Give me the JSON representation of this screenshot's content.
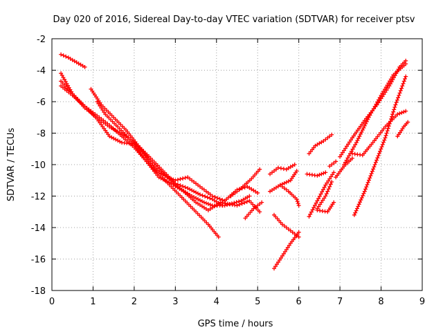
{
  "chart_data": {
    "type": "scatter",
    "title": "Day 020 of 2016, Sidereal Day-to-day VTEC variation (SDTVAR) for receiver ptsv",
    "xlabel": "GPS time / hours",
    "ylabel": "SDTVAR / TECUs",
    "xlim": [
      0,
      9
    ],
    "ylim": [
      -18,
      -2
    ],
    "xticks": [
      "0",
      "1",
      "2",
      "3",
      "4",
      "5",
      "6",
      "7",
      "8",
      "9"
    ],
    "yticks": [
      "-2",
      "-4",
      "-6",
      "-8",
      "-10",
      "-12",
      "-14",
      "-16",
      "-18"
    ],
    "grid": true,
    "marker": "+",
    "color": "#ff0000",
    "series": [
      {
        "x": [
          0.22,
          0.4,
          0.6,
          0.8
        ],
        "y": [
          -3.0,
          -3.2,
          -3.5,
          -3.8
        ]
      },
      {
        "x": [
          0.22,
          0.5,
          0.8,
          1.1,
          1.4,
          1.8,
          2.1,
          2.4,
          2.8,
          3.1,
          3.4,
          3.7,
          3.9,
          4.2,
          4.6,
          4.8
        ],
        "y": [
          -4.2,
          -5.5,
          -6.4,
          -7.0,
          -7.6,
          -8.2,
          -8.8,
          -9.8,
          -10.8,
          -11.5,
          -12.0,
          -12.4,
          -12.6,
          -12.6,
          -12.3,
          -12.0
        ]
      },
      {
        "x": [
          0.22,
          0.5,
          0.8,
          1.1,
          1.4,
          1.7,
          2.0,
          2.3,
          2.6,
          2.9,
          3.2,
          3.5,
          3.8,
          4.05
        ],
        "y": [
          -4.7,
          -5.5,
          -6.3,
          -6.9,
          -7.5,
          -8.2,
          -8.9,
          -9.8,
          -10.6,
          -11.4,
          -12.2,
          -13.0,
          -13.8,
          -14.6
        ]
      },
      {
        "x": [
          0.22,
          0.5,
          0.8,
          1.1,
          1.4,
          1.7,
          2.0,
          2.3,
          2.6,
          2.9,
          3.2,
          3.5,
          3.8,
          4.1,
          4.5,
          4.8,
          5.05
        ],
        "y": [
          -5.0,
          -5.6,
          -6.3,
          -7.1,
          -8.2,
          -8.6,
          -8.7,
          -9.8,
          -10.8,
          -11.2,
          -11.7,
          -12.4,
          -12.9,
          -12.4,
          -12.6,
          -12.3,
          -13.0
        ]
      },
      {
        "x": [
          0.95,
          1.2,
          1.5,
          1.8,
          2.1,
          2.4,
          2.7,
          3.0,
          3.3,
          3.6,
          3.9,
          4.15
        ],
        "y": [
          -5.2,
          -6.2,
          -7.0,
          -7.8,
          -8.8,
          -9.6,
          -10.4,
          -11.2,
          -11.5,
          -11.9,
          -12.2,
          -12.6
        ]
      },
      {
        "x": [
          1.1,
          1.3,
          1.6,
          1.9,
          2.2,
          2.5,
          2.8,
          3.0,
          3.3,
          3.6,
          3.9,
          4.2,
          4.5,
          4.75,
          5.0
        ],
        "y": [
          -6.0,
          -6.8,
          -7.6,
          -8.4,
          -9.2,
          -10.3,
          -10.8,
          -11.0,
          -10.8,
          -11.4,
          -12.0,
          -12.3,
          -11.6,
          -11.4,
          -11.8
        ]
      },
      {
        "x": [
          4.35,
          4.6,
          4.85,
          5.05
        ],
        "y": [
          -12.0,
          -11.5,
          -10.9,
          -10.3
        ]
      },
      {
        "x": [
          4.7,
          4.9,
          5.1
        ],
        "y": [
          -13.4,
          -12.8,
          -12.4
        ]
      },
      {
        "x": [
          5.4,
          5.6,
          5.85,
          6.0
        ],
        "y": [
          -13.2,
          -13.8,
          -14.3,
          -14.6
        ]
      },
      {
        "x": [
          5.4,
          5.6,
          5.8,
          6.0
        ],
        "y": [
          -16.6,
          -15.8,
          -15.0,
          -14.3
        ]
      },
      {
        "x": [
          5.3,
          5.55,
          5.8,
          5.95
        ],
        "y": [
          -11.7,
          -11.3,
          -11.0,
          -10.4
        ]
      },
      {
        "x": [
          5.3,
          5.5,
          5.7,
          5.9
        ],
        "y": [
          -10.6,
          -10.2,
          -10.3,
          -10.0
        ]
      },
      {
        "x": [
          5.55,
          5.75,
          5.95,
          6.0
        ],
        "y": [
          -11.3,
          -11.7,
          -12.2,
          -12.6
        ]
      },
      {
        "x": [
          6.25,
          6.4,
          6.6,
          6.8
        ],
        "y": [
          -9.3,
          -8.8,
          -8.5,
          -8.1
        ]
      },
      {
        "x": [
          6.2,
          6.45,
          6.65
        ],
        "y": [
          -10.6,
          -10.7,
          -10.5
        ]
      },
      {
        "x": [
          6.25,
          6.45,
          6.65,
          6.85
        ],
        "y": [
          -13.3,
          -12.3,
          -11.3,
          -10.5
        ]
      },
      {
        "x": [
          6.45,
          6.65,
          6.8
        ],
        "y": [
          -12.8,
          -12.0,
          -11.1
        ]
      },
      {
        "x": [
          6.45,
          6.7,
          6.85
        ],
        "y": [
          -12.9,
          -13.0,
          -12.4
        ]
      },
      {
        "x": [
          6.75,
          6.9
        ],
        "y": [
          -10.1,
          -9.8
        ]
      },
      {
        "x": [
          7.0,
          7.3,
          7.6,
          7.9,
          8.2,
          8.45,
          8.6
        ],
        "y": [
          -9.5,
          -8.3,
          -7.2,
          -6.2,
          -5.0,
          -3.8,
          -3.4
        ]
      },
      {
        "x": [
          7.1,
          7.4,
          7.7,
          8.0,
          8.3,
          8.6
        ],
        "y": [
          -10.0,
          -8.6,
          -7.0,
          -5.6,
          -4.3,
          -3.6
        ]
      },
      {
        "x": [
          7.3,
          7.55,
          7.8,
          8.1,
          8.4,
          8.6
        ],
        "y": [
          -9.3,
          -9.4,
          -8.6,
          -7.6,
          -6.8,
          -6.6
        ]
      },
      {
        "x": [
          7.35,
          7.6,
          7.85,
          8.1,
          8.35,
          8.6
        ],
        "y": [
          -13.2,
          -11.7,
          -10.0,
          -8.3,
          -6.2,
          -4.4
        ]
      },
      {
        "x": [
          8.4,
          8.55,
          8.65
        ],
        "y": [
          -8.2,
          -7.6,
          -7.3
        ]
      },
      {
        "x": [
          6.9,
          7.1,
          7.3
        ],
        "y": [
          -10.8,
          -10.1,
          -9.6
        ]
      }
    ]
  }
}
